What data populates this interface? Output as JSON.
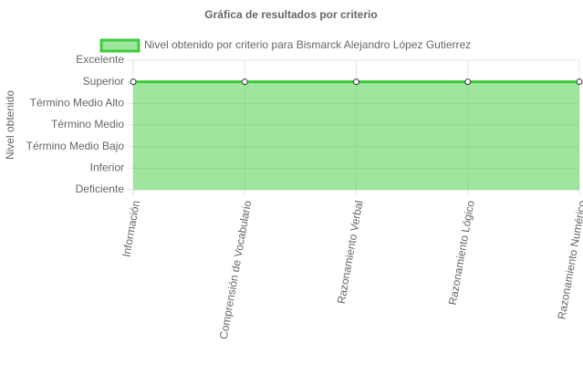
{
  "chart_data": {
    "type": "line",
    "title": "Gráfica de resultados por criterio",
    "y_label": "Nivel obtenido",
    "categories": [
      "Información",
      "Comprensión de Vocabulario",
      "Razonamiento Verbal",
      "Razonamiento Lógico",
      "Razonamiento Numérico"
    ],
    "series": [
      {
        "name": "Nivel obtenido por criterio para Bismarck Alejandro López Gutierrez",
        "color": "#3dcc3d",
        "values": [
          5,
          5,
          5,
          5,
          5
        ]
      }
    ],
    "ylim": [
      0,
      6
    ],
    "yticks": [
      {
        "value": 0,
        "label": "Deficiente"
      },
      {
        "value": 1,
        "label": "Inferior"
      },
      {
        "value": 2,
        "label": "Término Medio Bajo"
      },
      {
        "value": 3,
        "label": "Término Medio"
      },
      {
        "value": 4,
        "label": "Término Medio Alto"
      },
      {
        "value": 5,
        "label": "Superior"
      },
      {
        "value": 6,
        "label": "Excelente"
      }
    ],
    "grid": true,
    "fill": true
  }
}
